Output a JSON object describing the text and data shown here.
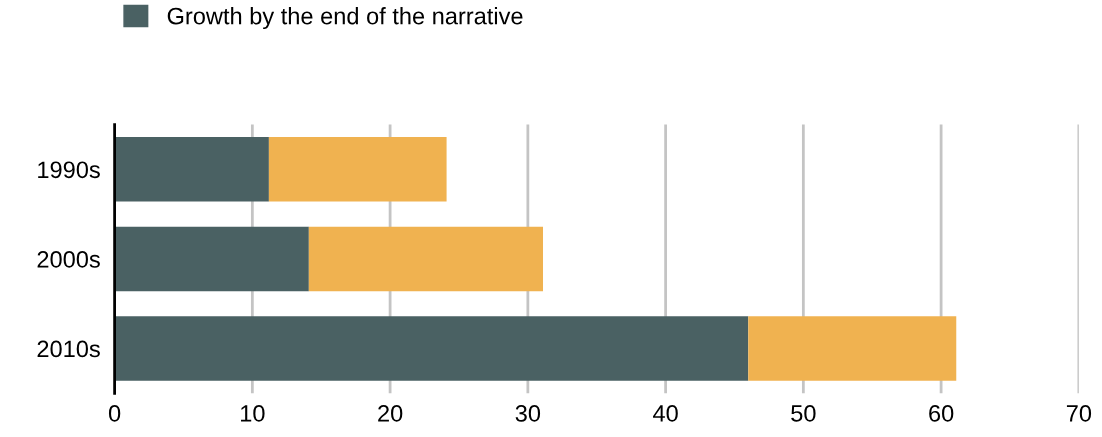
{
  "chart_data": {
    "type": "bar",
    "orientation": "horizontal",
    "stacked": true,
    "categories": [
      "1990s",
      "2000s",
      "2010s"
    ],
    "series": [
      {
        "name": "Growth by the end of the narrative",
        "color": "#4a6163",
        "values": [
          11.2,
          14.1,
          46.0
        ]
      },
      {
        "color": "#f0b250",
        "values": [
          12.9,
          17.0,
          15.1
        ]
      }
    ],
    "xlim": [
      0,
      70
    ],
    "xticks": [
      0,
      10,
      20,
      30,
      40,
      50,
      60,
      70
    ],
    "grid": "x",
    "legend": "top left"
  }
}
